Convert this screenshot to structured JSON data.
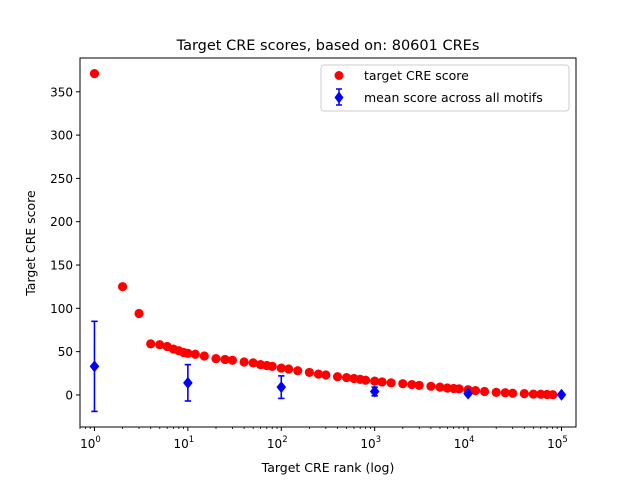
{
  "chart_data": {
    "type": "scatter",
    "title": "Target CRE scores, based on: 80601 CREs",
    "xlabel": "Target CRE rank (log)",
    "ylabel": "Target CRE score",
    "xscale": "log",
    "xlim": [
      0.7,
      143000
    ],
    "ylim": [
      -37,
      389
    ],
    "x_ticks": [
      {
        "base": "10",
        "exp": "0",
        "value": 1
      },
      {
        "base": "10",
        "exp": "1",
        "value": 10
      },
      {
        "base": "10",
        "exp": "2",
        "value": 100
      },
      {
        "base": "10",
        "exp": "3",
        "value": 1000
      },
      {
        "base": "10",
        "exp": "4",
        "value": 10000
      },
      {
        "base": "10",
        "exp": "5",
        "value": 100000
      }
    ],
    "y_ticks": [
      "0",
      "50",
      "100",
      "150",
      "200",
      "250",
      "300",
      "350"
    ],
    "grid": false,
    "legend_position": "top-right",
    "series": [
      {
        "name": "target CRE score",
        "kind": "scatter",
        "color": "#ff0000",
        "marker": "circle",
        "points": [
          [
            1,
            371
          ],
          [
            2,
            125
          ],
          [
            3,
            94
          ],
          [
            4,
            59
          ],
          [
            5,
            58
          ],
          [
            6,
            56
          ],
          [
            7,
            53
          ],
          [
            8,
            51
          ],
          [
            9,
            49
          ],
          [
            10,
            48
          ],
          [
            12,
            47
          ],
          [
            15,
            45
          ],
          [
            20,
            42
          ],
          [
            25,
            41
          ],
          [
            30,
            40
          ],
          [
            40,
            38
          ],
          [
            50,
            37
          ],
          [
            60,
            35
          ],
          [
            70,
            34
          ],
          [
            80,
            33
          ],
          [
            100,
            31
          ],
          [
            120,
            30
          ],
          [
            150,
            28
          ],
          [
            200,
            26
          ],
          [
            250,
            24
          ],
          [
            300,
            23
          ],
          [
            400,
            21
          ],
          [
            500,
            20
          ],
          [
            600,
            19
          ],
          [
            700,
            18
          ],
          [
            800,
            17
          ],
          [
            1000,
            16
          ],
          [
            1200,
            15
          ],
          [
            1500,
            14
          ],
          [
            2000,
            13
          ],
          [
            2500,
            12
          ],
          [
            3000,
            11
          ],
          [
            4000,
            10
          ],
          [
            5000,
            9
          ],
          [
            6000,
            8
          ],
          [
            7000,
            7.5
          ],
          [
            8000,
            7
          ],
          [
            10000,
            6
          ],
          [
            12000,
            5
          ],
          [
            15000,
            4
          ],
          [
            20000,
            3
          ],
          [
            25000,
            2.5
          ],
          [
            30000,
            2
          ],
          [
            40000,
            1.5
          ],
          [
            50000,
            1
          ],
          [
            60000,
            0.8
          ],
          [
            70000,
            0.5
          ],
          [
            80601,
            0.3
          ]
        ]
      },
      {
        "name": "mean score across all motifs",
        "kind": "errorbar",
        "color": "#0000ff",
        "marker": "diamond",
        "points": [
          {
            "x": 1,
            "y": 33,
            "err": 52
          },
          {
            "x": 10,
            "y": 14,
            "err": 21
          },
          {
            "x": 100,
            "y": 9,
            "err": 13
          },
          {
            "x": 1000,
            "y": 4,
            "err": 5
          },
          {
            "x": 10000,
            "y": 1.5,
            "err": 2
          },
          {
            "x": 100000,
            "y": 0.3,
            "err": 0.6
          }
        ]
      }
    ]
  }
}
